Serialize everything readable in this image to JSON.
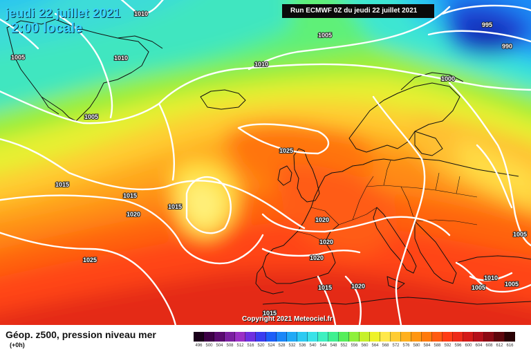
{
  "header": {
    "date_line": "jeudi 22 juillet 2021",
    "time_line": "2:00 locale"
  },
  "run_info": "Run ECMWF 0Z du jeudi 22 juillet 2021",
  "copyright": "Copyright 2021 Meteociel.fr",
  "legend": {
    "title": "Géop. z500, pression niveau mer",
    "subtitle": "(+0h)",
    "scale": [
      {
        "value": "496",
        "color": "#1a001a"
      },
      {
        "value": "500",
        "color": "#3d0046"
      },
      {
        "value": "504",
        "color": "#5a0a70"
      },
      {
        "value": "508",
        "color": "#7a1ea0"
      },
      {
        "value": "512",
        "color": "#9a2fc6"
      },
      {
        "value": "516",
        "color": "#6e2fe0"
      },
      {
        "value": "520",
        "color": "#3a3cf0"
      },
      {
        "value": "524",
        "color": "#1c5ef8"
      },
      {
        "value": "528",
        "color": "#1a86f8"
      },
      {
        "value": "532",
        "color": "#20a9f6"
      },
      {
        "value": "536",
        "color": "#2ccaf2"
      },
      {
        "value": "540",
        "color": "#3ae2e8"
      },
      {
        "value": "544",
        "color": "#3ef0c0"
      },
      {
        "value": "548",
        "color": "#3ff090"
      },
      {
        "value": "552",
        "color": "#55ee5a"
      },
      {
        "value": "556",
        "color": "#8ef03c"
      },
      {
        "value": "560",
        "color": "#c6f02a"
      },
      {
        "value": "564",
        "color": "#eef22a"
      },
      {
        "value": "568",
        "color": "#ffe84a"
      },
      {
        "value": "572",
        "color": "#ffcc33"
      },
      {
        "value": "576",
        "color": "#ffb01e"
      },
      {
        "value": "580",
        "color": "#ff9612"
      },
      {
        "value": "584",
        "color": "#ff7a0c"
      },
      {
        "value": "588",
        "color": "#ff5a10"
      },
      {
        "value": "592",
        "color": "#ff3c14"
      },
      {
        "value": "596",
        "color": "#ee2a18"
      },
      {
        "value": "600",
        "color": "#d41a18"
      },
      {
        "value": "604",
        "color": "#b4101a"
      },
      {
        "value": "608",
        "color": "#8c0a14"
      },
      {
        "value": "612",
        "color": "#5e060c"
      },
      {
        "value": "616",
        "color": "#2a0204"
      }
    ]
  },
  "isobars": {
    "values": [
      "1010",
      "1005",
      "1010",
      "1005",
      "995",
      "990",
      "1000",
      "1025",
      "1015",
      "1015",
      "1015",
      "1020",
      "1025",
      "1020",
      "1020",
      "1020",
      "1015",
      "1020",
      "1015",
      "1010",
      "1005",
      "1005",
      "1005",
      "1005",
      "1000",
      "1010",
      "1005"
    ]
  },
  "colors": {
    "title": "#3ad0ff",
    "isobar_line": "#ffffff",
    "coast": "#111111"
  }
}
